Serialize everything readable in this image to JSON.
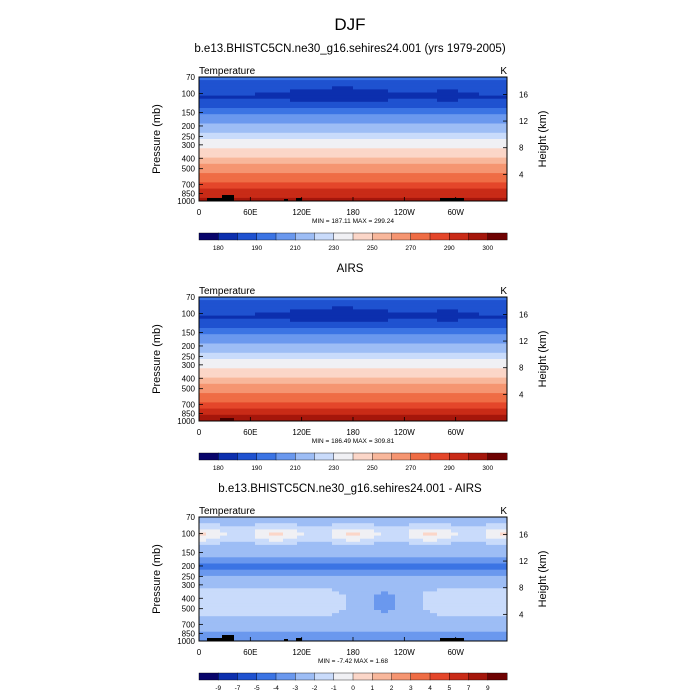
{
  "figure": {
    "title": "DJF"
  },
  "chart_data": [
    {
      "type": "heatmap",
      "title": "b.e13.BHISTC5CN.ne30_g16.sehires24.001 (yrs 1979-2005)",
      "variable_label": "Temperature",
      "units": "K",
      "ylabel": "Pressure (mb)",
      "ylabel_right": "Height (km)",
      "x_tick_labels": [
        "0",
        "60E",
        "120E",
        "180",
        "120W",
        "60W"
      ],
      "y_tick_labels": [
        "70",
        "100",
        "150",
        "200",
        "250",
        "300",
        "400",
        "500",
        "700",
        "850",
        "1000"
      ],
      "y_right_tick_labels": [
        "16",
        "12",
        "8",
        "4"
      ],
      "stats": "MIN = 187.11   MAX = 299.24",
      "colorbar_labels": [
        "180",
        "190",
        "210",
        "230",
        "250",
        "270",
        "290",
        "300"
      ],
      "colorbar_colors": [
        "#08056b",
        "#0c2fae",
        "#1f52d0",
        "#3b74e4",
        "#6a98ee",
        "#9dbdf5",
        "#c9dbfb",
        "#f0f0f4",
        "#fbd6c8",
        "#f8b79b",
        "#f59571",
        "#ef6d45",
        "#e4462a",
        "#c92b17",
        "#a5160b",
        "#6e0202"
      ],
      "color_min": 175,
      "color_max": 305
    },
    {
      "type": "heatmap",
      "title": "AIRS",
      "variable_label": "Temperature",
      "units": "K",
      "ylabel": "Pressure (mb)",
      "ylabel_right": "Height (km)",
      "x_tick_labels": [
        "0",
        "60E",
        "120E",
        "180",
        "120W",
        "60W"
      ],
      "y_tick_labels": [
        "70",
        "100",
        "150",
        "200",
        "250",
        "300",
        "400",
        "500",
        "700",
        "850",
        "1000"
      ],
      "y_right_tick_labels": [
        "16",
        "12",
        "8",
        "4"
      ],
      "stats": "MIN = 186.49   MAX = 309.81",
      "colorbar_labels": [
        "180",
        "190",
        "210",
        "230",
        "250",
        "270",
        "290",
        "300"
      ],
      "colorbar_colors": [
        "#08056b",
        "#0c2fae",
        "#1f52d0",
        "#3b74e4",
        "#6a98ee",
        "#9dbdf5",
        "#c9dbfb",
        "#f0f0f4",
        "#fbd6c8",
        "#f8b79b",
        "#f59571",
        "#ef6d45",
        "#e4462a",
        "#c92b17",
        "#a5160b",
        "#6e0202"
      ],
      "color_min": 175,
      "color_max": 305
    },
    {
      "type": "heatmap",
      "title": "b.e13.BHISTC5CN.ne30_g16.sehires24.001 - AIRS",
      "variable_label": "Temperature",
      "units": "K",
      "ylabel": "Pressure (mb)",
      "ylabel_right": "Height (km)",
      "x_tick_labels": [
        "0",
        "60E",
        "120E",
        "180",
        "120W",
        "60W"
      ],
      "y_tick_labels": [
        "70",
        "100",
        "150",
        "200",
        "250",
        "300",
        "400",
        "500",
        "700",
        "850",
        "1000"
      ],
      "y_right_tick_labels": [
        "16",
        "12",
        "8",
        "4"
      ],
      "stats": "MIN = -7.42   MAX =  1.68",
      "colorbar_labels": [
        "-9",
        "-7",
        "-5",
        "-4",
        "-3",
        "-2",
        "-1",
        "0",
        "1",
        "2",
        "3",
        "4",
        "5",
        "7",
        "9"
      ],
      "colorbar_colors": [
        "#08056b",
        "#0c2fae",
        "#1f52d0",
        "#3b74e4",
        "#6a98ee",
        "#9dbdf5",
        "#c9dbfb",
        "#f0f0f4",
        "#fbd6c8",
        "#f8b79b",
        "#f59571",
        "#ef6d45",
        "#e4462a",
        "#c92b17",
        "#a5160b",
        "#6e0202"
      ],
      "diff_levels": [
        -9,
        -7,
        -5,
        -4,
        -3,
        -2,
        -1,
        0,
        1,
        2,
        3,
        4,
        5,
        7,
        9
      ]
    }
  ]
}
